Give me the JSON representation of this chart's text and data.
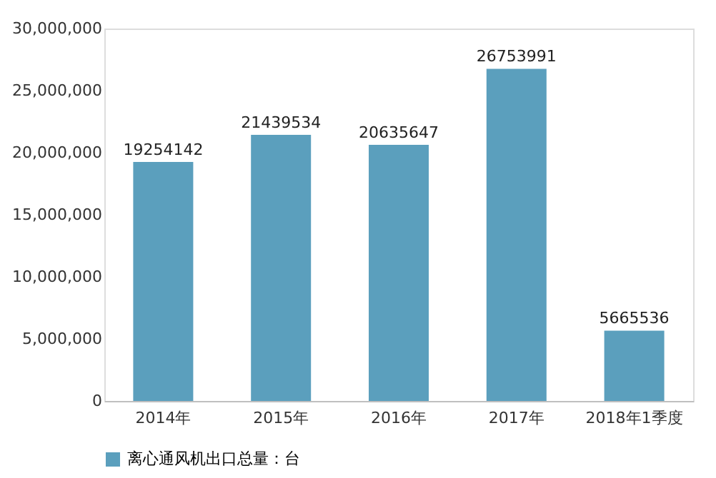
{
  "chart_data": {
    "type": "bar",
    "categories": [
      "2014年",
      "2015年",
      "2016年",
      "2017年",
      "2018年1季度"
    ],
    "series": [
      {
        "name": "离心通风机出口总量：台",
        "color": "#5b9fbd",
        "values": [
          19254142,
          21439534,
          20635647,
          26753991,
          5665536
        ]
      }
    ],
    "ylim": [
      0,
      30000000
    ],
    "yticks": [
      {
        "value": 0,
        "label": "0"
      },
      {
        "value": 5000000,
        "label": "5,000,000"
      },
      {
        "value": 10000000,
        "label": "10,000,000"
      },
      {
        "value": 15000000,
        "label": "15,000,000"
      },
      {
        "value": 20000000,
        "label": "20,000,000"
      },
      {
        "value": 25000000,
        "label": "25,000,000"
      },
      {
        "value": 30000000,
        "label": "30,000,000"
      }
    ],
    "data_labels": true,
    "grid": false,
    "legend": "bottom"
  }
}
